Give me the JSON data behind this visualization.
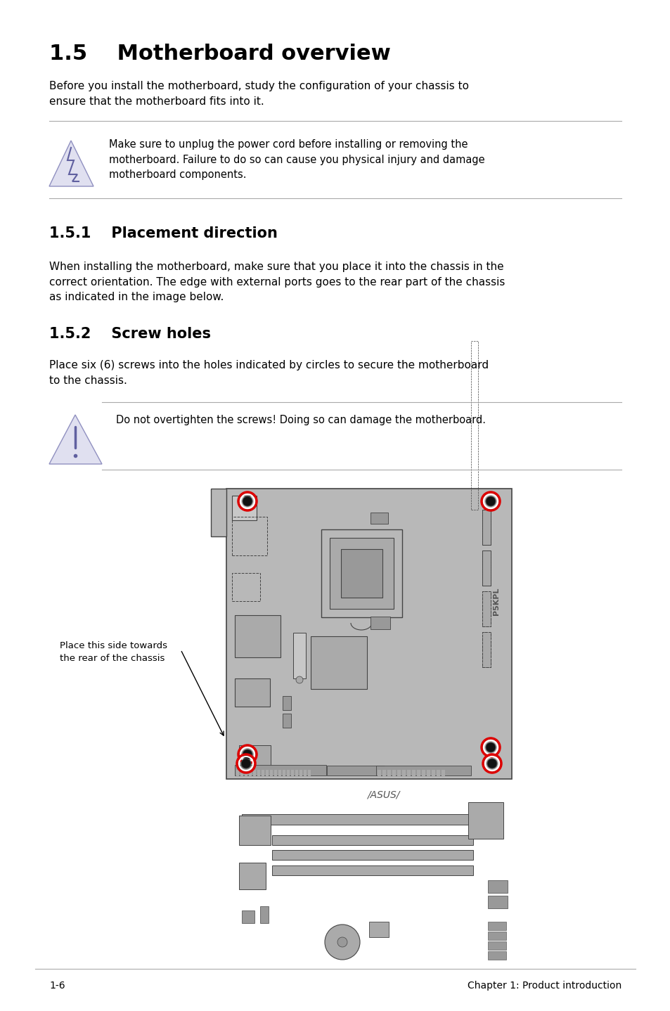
{
  "title": "1.5    Motherboard overview",
  "intro_text": "Before you install the motherboard, study the configuration of your chassis to\nensure that the motherboard fits into it.",
  "warning1_text": "Make sure to unplug the power cord before installing or removing the\nmotherboard. Failure to do so can cause you physical injury and damage\nmotherboard components.",
  "section151_title": "1.5.1    Placement direction",
  "section151_text": "When installing the motherboard, make sure that you place it into the chassis in the\ncorrect orientation. The edge with external ports goes to the rear part of the chassis\nas indicated in the image below.",
  "section152_title": "1.5.2    Screw holes",
  "section152_text": "Place six (6) screws into the holes indicated by circles to secure the motherboard\nto the chassis.",
  "warning2_text": "Do not overtighten the screws! Doing so can damage the motherboard.",
  "label_text": "Place this side towards\nthe rear of the chassis",
  "footer_left": "1-6",
  "footer_right": "Chapter 1: Product introduction",
  "bg_color": "#ffffff",
  "text_color": "#000000",
  "line_color": "#aaaaaa",
  "board_fill": "#b8b8b8",
  "board_edge": "#444444",
  "comp_dark": "#999999",
  "comp_med": "#aaaaaa",
  "comp_light": "#c8c8c8",
  "screw_red": "#dd0000"
}
